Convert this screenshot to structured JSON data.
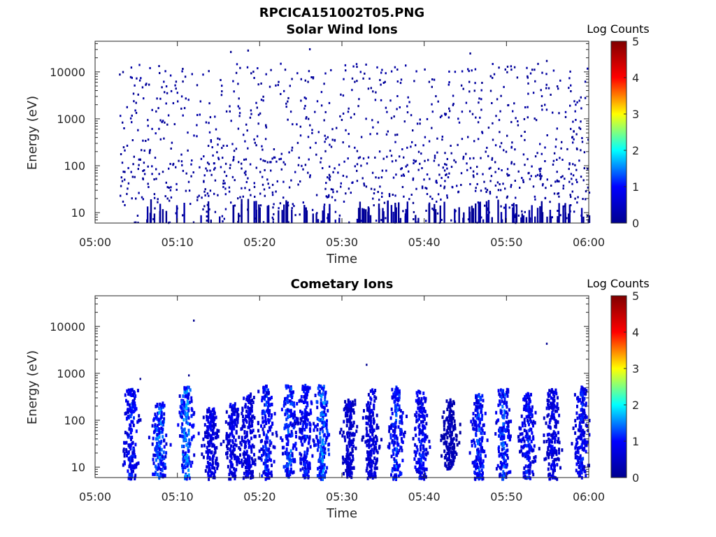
{
  "figure_title": "RPCICA151002T05.PNG",
  "colorscale": {
    "name": "jet",
    "stops": [
      "#00008f",
      "#0000ff",
      "#00ffff",
      "#ffff00",
      "#ff0000",
      "#800000"
    ]
  },
  "chart_data": [
    {
      "type": "heatmap",
      "title": "Solar Wind Ions",
      "xlabel": "Time",
      "ylabel": "Energy (eV)",
      "x_ticks": [
        "05:00",
        "05:10",
        "05:20",
        "05:30",
        "05:40",
        "05:50",
        "06:00"
      ],
      "x_range_minutes": [
        0,
        60
      ],
      "y_scale": "log",
      "y_ticks": [
        "10",
        "100",
        "1000",
        "10000"
      ],
      "y_range": [
        6,
        45000
      ],
      "colorbar": {
        "label": "Log Counts",
        "ticks": [
          "0",
          "1",
          "2",
          "3",
          "4",
          "5"
        ],
        "range": [
          0,
          5
        ]
      },
      "grid": false,
      "description_of_data": "sparse single-count (log value ~0) points scattered between ~5 eV and ~30000 eV from 05:03 to 06:00, densest 100-10000 eV"
    },
    {
      "type": "heatmap",
      "title": "Cometary Ions",
      "xlabel": "Time",
      "ylabel": "Energy (eV)",
      "x_ticks": [
        "05:00",
        "05:10",
        "05:20",
        "05:30",
        "05:40",
        "05:50",
        "06:00"
      ],
      "x_range_minutes": [
        0,
        60
      ],
      "y_scale": "log",
      "y_ticks": [
        "10",
        "100",
        "1000",
        "10000"
      ],
      "y_range": [
        6,
        45000
      ],
      "colorbar": {
        "label": "Log Counts",
        "ticks": [
          "0",
          "1",
          "2",
          "3",
          "4",
          "5"
        ],
        "range": [
          0,
          5
        ]
      },
      "grid": false,
      "bursts": [
        {
          "t": 4.3,
          "emin": 6,
          "emax": 500,
          "peak": 1.3
        },
        {
          "t": 7.7,
          "emin": 6,
          "emax": 250,
          "peak": 1.6
        },
        {
          "t": 11.0,
          "emin": 6,
          "emax": 550,
          "peak": 1.7
        },
        {
          "t": 14.0,
          "emin": 6,
          "emax": 200,
          "peak": 1.0
        },
        {
          "t": 16.7,
          "emin": 6,
          "emax": 250,
          "peak": 1.0
        },
        {
          "t": 18.5,
          "emin": 6,
          "emax": 400,
          "peak": 1.0
        },
        {
          "t": 20.7,
          "emin": 6,
          "emax": 600,
          "peak": 1.3
        },
        {
          "t": 23.5,
          "emin": 6,
          "emax": 600,
          "peak": 1.5
        },
        {
          "t": 25.5,
          "emin": 6,
          "emax": 600,
          "peak": 1.2
        },
        {
          "t": 27.5,
          "emin": 6,
          "emax": 600,
          "peak": 1.6
        },
        {
          "t": 30.8,
          "emin": 6,
          "emax": 300,
          "peak": 0.8
        },
        {
          "t": 33.5,
          "emin": 6,
          "emax": 500,
          "peak": 0.9
        },
        {
          "t": 36.5,
          "emin": 6,
          "emax": 550,
          "peak": 1.4
        },
        {
          "t": 39.5,
          "emin": 6,
          "emax": 450,
          "peak": 1.2
        },
        {
          "t": 43.0,
          "emin": 10,
          "emax": 300,
          "peak": 0.5
        },
        {
          "t": 46.5,
          "emin": 6,
          "emax": 400,
          "peak": 1.4
        },
        {
          "t": 49.5,
          "emin": 6,
          "emax": 500,
          "peak": 1.4
        },
        {
          "t": 52.5,
          "emin": 6,
          "emax": 400,
          "peak": 1.2
        },
        {
          "t": 55.5,
          "emin": 6,
          "emax": 500,
          "peak": 1.0
        },
        {
          "t": 59.0,
          "emin": 6,
          "emax": 550,
          "peak": 1.2
        }
      ]
    }
  ]
}
